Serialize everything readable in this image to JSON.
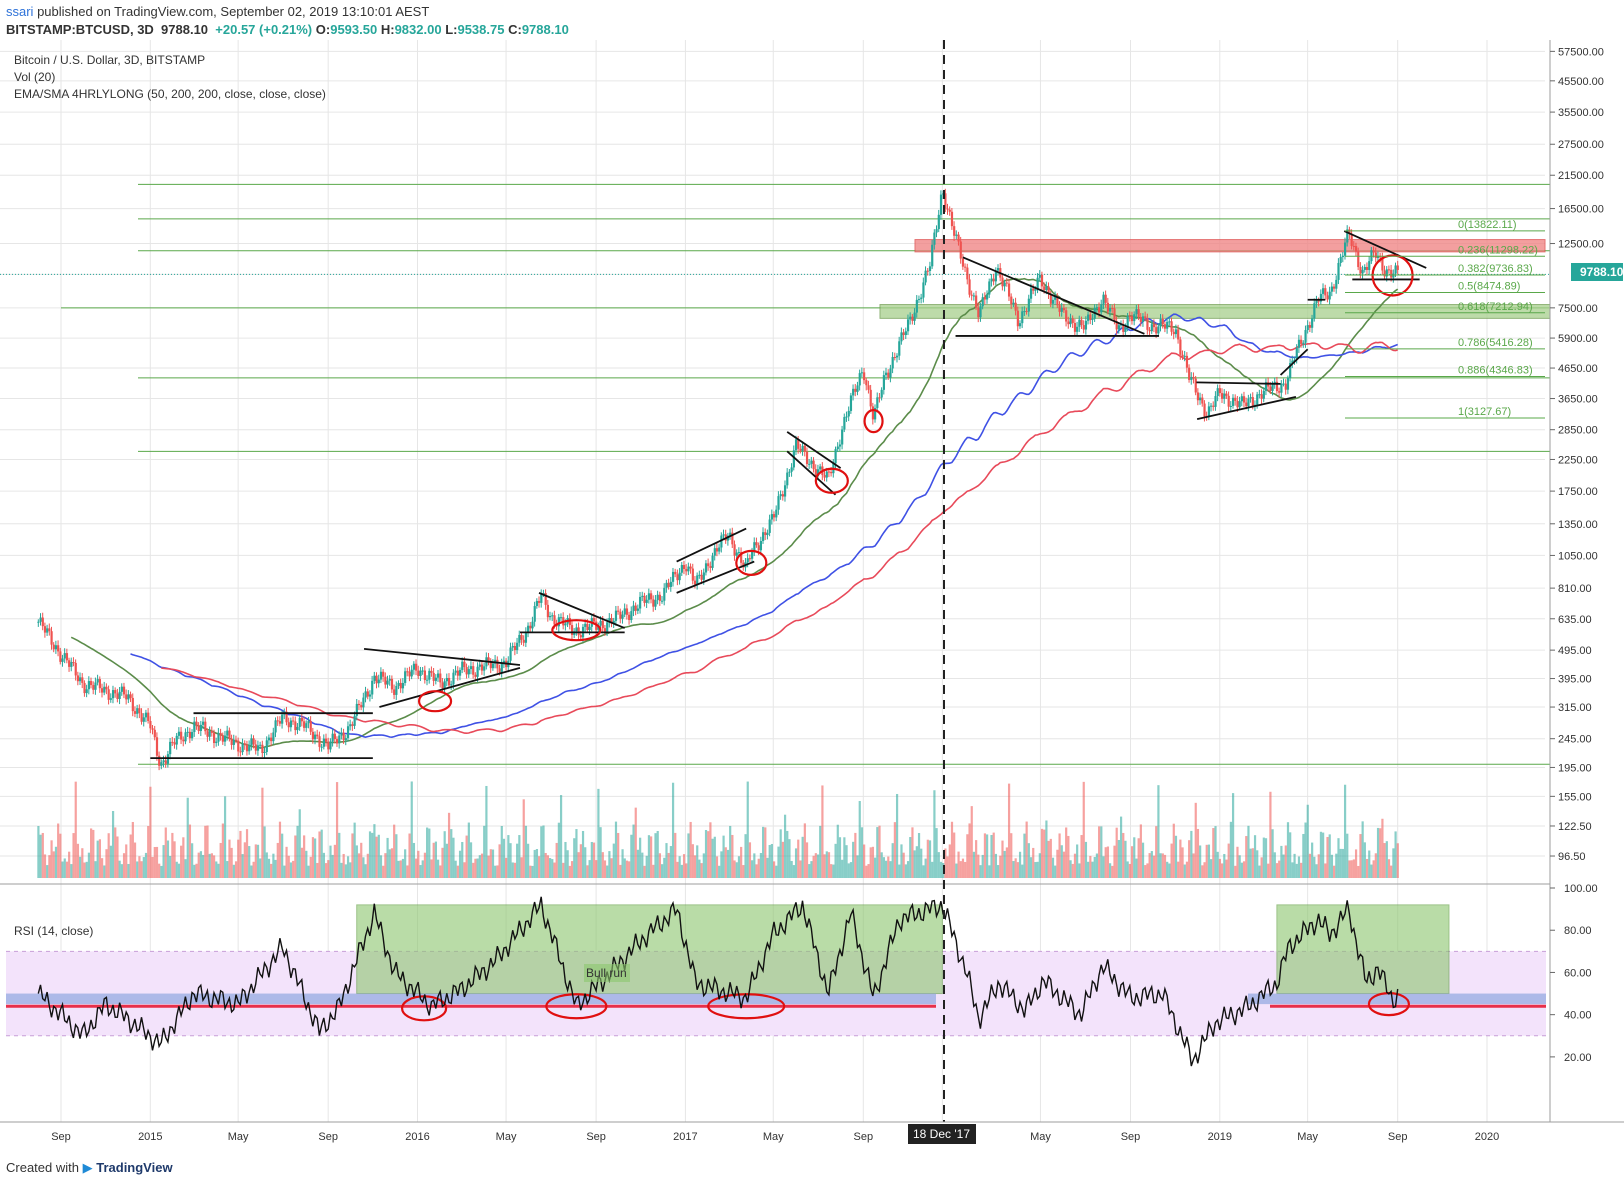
{
  "header": {
    "publisher": "ssari",
    "published_text": "published on TradingView.com, September 02, 2019 13:10:01 AEST",
    "symbol": "BITSTAMP:BTCUSD, 3D",
    "last": "9788.10",
    "change": "+20.57 (+0.21%)",
    "o_label": "O:",
    "o": "9593.50",
    "h_label": "H:",
    "h": "9832.00",
    "l_label": "L:",
    "l": "9538.75",
    "c_label": "C:",
    "c": "9788.10"
  },
  "legend": {
    "title": "Bitcoin / U.S. Dollar, 3D, BITSTAMP",
    "vol": "Vol (20)",
    "ma": "EMA/SMA 4HRLYLONG (50, 200, 200, close, close, close)"
  },
  "price_badge": "9788.10",
  "rsi": {
    "title": "RSI (14, close)",
    "annotation": "Bull run"
  },
  "event": {
    "label": "18 Dec '17"
  },
  "footer": {
    "created": "Created with",
    "brand": "TradingView"
  },
  "colors": {
    "bull": "#26a69a",
    "bear": "#ef5350",
    "ma50": "#5b8c4a",
    "ma200a": "#3f51e5",
    "ma200b": "#e84a5a",
    "fib": "#5aa84a",
    "rsi_bg": "#f3e3fb",
    "bull_zone": "#8cc66e",
    "resistance": "#f08080",
    "support": "#a8d08d",
    "marker": "#e01010"
  },
  "chart_data": {
    "type": "candlestick",
    "title": "Bitcoin / U.S. Dollar, 3D, BITSTAMP",
    "scale": "log",
    "ylim": [
      85,
      60000
    ],
    "y_ticks": [
      57500,
      45500,
      35500,
      27500,
      21500,
      16500,
      12500,
      9788.1,
      7500,
      5900,
      4650,
      3650,
      2850,
      2250,
      1750,
      1350,
      1050,
      810,
      635,
      495,
      395,
      315,
      245,
      195,
      155,
      122.5,
      96.5
    ],
    "y_tick_labels": [
      "57500.00",
      "45500.00",
      "35500.00",
      "27500.00",
      "21500.00",
      "16500.00",
      "12500.00",
      "9788.10",
      "7500.00",
      "5900.00",
      "4650.00",
      "3650.00",
      "2850.00",
      "2250.00",
      "1750.00",
      "1350.00",
      "1050.00",
      "810.00",
      "635.00",
      "495.00",
      "395.00",
      "315.00",
      "245.00",
      "195.00",
      "155.00",
      "122.50",
      "96.50"
    ],
    "x_ticks": [
      "Sep",
      "2015",
      "May",
      "Sep",
      "2016",
      "May",
      "Sep",
      "2017",
      "May",
      "Sep",
      "18 Dec '17",
      "May",
      "Sep",
      "2019",
      "May",
      "Sep",
      "2020"
    ],
    "x_tick_dates": [
      "2014-09-01",
      "2015-01-01",
      "2015-05-01",
      "2015-09-01",
      "2016-01-01",
      "2016-05-01",
      "2016-09-01",
      "2017-01-01",
      "2017-05-01",
      "2017-09-01",
      "2017-12-18",
      "2018-05-01",
      "2018-09-01",
      "2019-01-01",
      "2019-05-01",
      "2019-09-01",
      "2020-01-01"
    ],
    "price_path": [
      [
        "2014-08-01",
        620
      ],
      [
        "2014-09-01",
        480
      ],
      [
        "2014-10-01",
        380
      ],
      [
        "2014-11-01",
        360
      ],
      [
        "2014-12-01",
        340
      ],
      [
        "2015-01-01",
        270
      ],
      [
        "2015-01-15",
        200
      ],
      [
        "2015-02-01",
        235
      ],
      [
        "2015-03-01",
        270
      ],
      [
        "2015-05-01",
        235
      ],
      [
        "2015-06-01",
        225
      ],
      [
        "2015-07-01",
        290
      ],
      [
        "2015-08-01",
        270
      ],
      [
        "2015-09-01",
        230
      ],
      [
        "2015-10-01",
        270
      ],
      [
        "2015-11-03",
        400
      ],
      [
        "2015-12-01",
        370
      ],
      [
        "2016-01-01",
        430
      ],
      [
        "2016-02-01",
        380
      ],
      [
        "2016-03-01",
        420
      ],
      [
        "2016-05-01",
        450
      ],
      [
        "2016-06-01",
        600
      ],
      [
        "2016-06-18",
        760
      ],
      [
        "2016-07-01",
        650
      ],
      [
        "2016-08-01",
        580
      ],
      [
        "2016-09-01",
        600
      ],
      [
        "2016-10-01",
        640
      ],
      [
        "2016-11-01",
        720
      ],
      [
        "2016-12-01",
        770
      ],
      [
        "2017-01-01",
        1000
      ],
      [
        "2017-01-15",
        820
      ],
      [
        "2017-02-01",
        1000
      ],
      [
        "2017-03-01",
        1250
      ],
      [
        "2017-03-25",
        930
      ],
      [
        "2017-04-01",
        1080
      ],
      [
        "2017-05-01",
        1400
      ],
      [
        "2017-06-01",
        2500
      ],
      [
        "2017-07-15",
        1900
      ],
      [
        "2017-08-01",
        2800
      ],
      [
        "2017-09-01",
        4700
      ],
      [
        "2017-09-15",
        3100
      ],
      [
        "2017-10-01",
        4400
      ],
      [
        "2017-11-01",
        6500
      ],
      [
        "2017-12-01",
        10500
      ],
      [
        "2017-12-18",
        19500
      ],
      [
        "2018-01-01",
        14000
      ],
      [
        "2018-02-06",
        7000
      ],
      [
        "2018-03-01",
        10500
      ],
      [
        "2018-04-01",
        6800
      ],
      [
        "2018-05-01",
        9500
      ],
      [
        "2018-06-01",
        7000
      ],
      [
        "2018-07-01",
        6400
      ],
      [
        "2018-07-25",
        8200
      ],
      [
        "2018-08-15",
        6300
      ],
      [
        "2018-09-01",
        7100
      ],
      [
        "2018-10-01",
        6500
      ],
      [
        "2018-11-01",
        6400
      ],
      [
        "2018-11-20",
        4300
      ],
      [
        "2018-12-15",
        3250
      ],
      [
        "2019-01-01",
        3800
      ],
      [
        "2019-02-01",
        3450
      ],
      [
        "2019-03-01",
        3850
      ],
      [
        "2019-04-01",
        4150
      ],
      [
        "2019-04-15",
        5200
      ],
      [
        "2019-05-15",
        8000
      ],
      [
        "2019-06-01",
        8500
      ],
      [
        "2019-06-26",
        13500
      ],
      [
        "2019-07-15",
        10000
      ],
      [
        "2019-08-01",
        11500
      ],
      [
        "2019-08-15",
        10200
      ],
      [
        "2019-09-01",
        9788.1
      ]
    ],
    "fib_levels": [
      {
        "ratio": "0",
        "value": 13822.11,
        "label": "0(13822.11)"
      },
      {
        "ratio": "0.236",
        "value": 11298.22,
        "label": "0.236(11298.22)"
      },
      {
        "ratio": "0.382",
        "value": 9736.83,
        "label": "0.382(9736.83)"
      },
      {
        "ratio": "0.5",
        "value": 8474.89,
        "label": "0.5(8474.89)"
      },
      {
        "ratio": "0.618",
        "value": 7212.94,
        "label": "0.618(7212.94)"
      },
      {
        "ratio": "0.786",
        "value": 5416.28,
        "label": "0.786(5416.28)"
      },
      {
        "ratio": "0.886",
        "value": 4346.83,
        "label": "0.886(4346.83)"
      },
      {
        "ratio": "1",
        "value": 3127.67,
        "label": "1(3127.67)"
      }
    ],
    "horizontal_levels": [
      20000,
      15200,
      11800,
      7500,
      4300,
      2400,
      200
    ],
    "rsi": {
      "ylim": [
        10,
        100
      ],
      "y_tick_labels": [
        "100.00",
        "80.00",
        "60.00",
        "40.00",
        "20.00"
      ],
      "path": [
        [
          "2014-08-01",
          50
        ],
        [
          "2014-09-01",
          40
        ],
        [
          "2014-10-01",
          30
        ],
        [
          "2014-11-01",
          45
        ],
        [
          "2014-12-01",
          38
        ],
        [
          "2015-01-15",
          26
        ],
        [
          "2015-03-01",
          50
        ],
        [
          "2015-05-01",
          45
        ],
        [
          "2015-07-01",
          72
        ],
        [
          "2015-08-20",
          32
        ],
        [
          "2015-09-15",
          43
        ],
        [
          "2015-11-03",
          88
        ],
        [
          "2015-12-01",
          60
        ],
        [
          "2016-01-20",
          44
        ],
        [
          "2016-03-01",
          52
        ],
        [
          "2016-04-15",
          65
        ],
        [
          "2016-06-18",
          92
        ],
        [
          "2016-08-05",
          44
        ],
        [
          "2016-09-15",
          58
        ],
        [
          "2016-11-01",
          75
        ],
        [
          "2016-12-20",
          90
        ],
        [
          "2017-01-15",
          55
        ],
        [
          "2017-03-25",
          48
        ],
        [
          "2017-05-01",
          78
        ],
        [
          "2017-06-10",
          92
        ],
        [
          "2017-07-15",
          50
        ],
        [
          "2017-08-15",
          88
        ],
        [
          "2017-09-15",
          48
        ],
        [
          "2017-10-20",
          85
        ],
        [
          "2017-12-18",
          92
        ],
        [
          "2018-01-20",
          60
        ],
        [
          "2018-02-06",
          38
        ],
        [
          "2018-03-05",
          55
        ],
        [
          "2018-04-10",
          42
        ],
        [
          "2018-05-05",
          56
        ],
        [
          "2018-06-25",
          40
        ],
        [
          "2018-07-25",
          63
        ],
        [
          "2018-09-01",
          48
        ],
        [
          "2018-10-15",
          50
        ],
        [
          "2018-11-25",
          18
        ],
        [
          "2018-12-25",
          36
        ],
        [
          "2019-02-10",
          44
        ],
        [
          "2019-03-20",
          55
        ],
        [
          "2019-04-05",
          72
        ],
        [
          "2019-05-15",
          85
        ],
        [
          "2019-06-01",
          78
        ],
        [
          "2019-06-26",
          90
        ],
        [
          "2019-07-20",
          55
        ],
        [
          "2019-08-05",
          62
        ],
        [
          "2019-08-25",
          47
        ],
        [
          "2019-09-01",
          49
        ]
      ],
      "bull_zones": [
        [
          "2015-10-10",
          "2017-12-18"
        ],
        [
          "2019-03-20",
          "2019-11-10"
        ]
      ]
    }
  }
}
